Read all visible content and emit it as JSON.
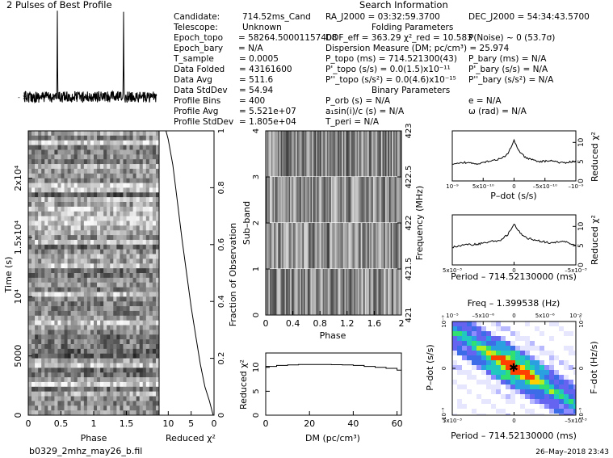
{
  "header": {
    "profile_title": "2 Pulses of Best Profile",
    "search_title": "Search Information",
    "filename": "b0329_2mhz_may26_b.fil",
    "datetime": "26–May–2018 23:43"
  },
  "info_col1": [
    {
      "label": "Candidate:",
      "value": "714.52ms_Cand"
    },
    {
      "label": "Telescope:",
      "value": "Unknown"
    },
    {
      "label": "Epoch_topo",
      "value": "= 58264.50001157408"
    },
    {
      "label": "Epoch_bary",
      "value": "= N/A"
    },
    {
      "label": "T_sample",
      "value": "0.0005"
    },
    {
      "label": "Data Folded",
      "value": "43161600"
    },
    {
      "label": "Data Avg",
      "value": "511.6"
    },
    {
      "label": "Data StdDev",
      "value": "54.94"
    },
    {
      "label": "Profile Bins",
      "value": "400"
    },
    {
      "label": "Profile Avg",
      "value": "5.521e+07"
    },
    {
      "label": "Profile StdDev",
      "value": "1.805e+04"
    }
  ],
  "info_col2": {
    "ra": "RA_J2000 = 03:32:59.3700",
    "folding_title": "Folding Parameters",
    "dof": "DOF_eff = 363.29  χ²_red = 10.583",
    "dm": "Dispersion Measure (DM; pc/cm³) = 25.974",
    "ptopo": "P_topo (ms) = 714.521300(43)",
    "pdtopo": "P'_topo (s/s) = 0.0(1.5)x10⁻¹¹",
    "pddtopo": "P''_topo (s/s²) = 0.0(4.6)x10⁻¹⁵",
    "binary_title": "Binary Parameters",
    "porb": "P_orb (s) = N/A",
    "asini": "a₁sin(i)/c (s) = N/A",
    "tperi": "T_peri = N/A"
  },
  "info_col3": {
    "dec": "DEC_J2000 = 54:34:43.5700",
    "pnoise": "P(Noise) ~ 0   (53.7σ)",
    "pbary": "P_bary (ms) = N/A",
    "pdbary": "P'_bary (s/s) = N/A",
    "pddbary": "P''_bary (s/s²) = N/A",
    "ecc": "e = N/A",
    "omega": "ω (rad) = N/A"
  },
  "chart_data": [
    {
      "id": "pulse-profile",
      "type": "line",
      "title": "2 Pulses of Best Profile",
      "xlim": [
        0,
        2
      ],
      "peaks_at_phase": [
        0.5,
        1.5
      ]
    },
    {
      "id": "time-phase",
      "type": "heatmap",
      "xlabel": "Phase",
      "ylabel": "Time (s)",
      "xlim": [
        0,
        2
      ],
      "ylim": [
        0,
        24000
      ],
      "x_ticks": [
        "0",
        "0.5",
        "1",
        "1.5"
      ],
      "y_ticks": [
        "0",
        "5000",
        "10⁴",
        "1.5x10⁴",
        "2x10⁴"
      ]
    },
    {
      "id": "reduced-chi2-vs-time",
      "type": "line",
      "xlabel": "Reduced χ²",
      "ylabel": "Fraction of Observation",
      "x_ticks": [
        "10",
        "5",
        "0"
      ],
      "y_ticks": [
        "0",
        "0.2",
        "0.4",
        "0.6",
        "0.8",
        "1"
      ],
      "x": [
        0.2,
        1.0,
        2.0,
        3.0,
        4.0,
        5.0,
        6.0,
        7.0,
        8.0,
        9.0,
        10.0,
        10.5
      ],
      "y": [
        0.0,
        0.05,
        0.1,
        0.18,
        0.28,
        0.38,
        0.5,
        0.62,
        0.75,
        0.88,
        0.97,
        1.0
      ]
    },
    {
      "id": "subband-phase",
      "type": "heatmap",
      "xlabel": "Phase",
      "ylabel": "Sub–band",
      "y2label": "Frequency (MHz)",
      "x_ticks": [
        "0",
        "0.4",
        "0.8",
        "1.2",
        "1.6",
        "2"
      ],
      "y_ticks": [
        "0",
        "1",
        "2",
        "3",
        "4"
      ],
      "y2_ticks": [
        "421",
        "421.5",
        "422",
        "422.5",
        "423"
      ]
    },
    {
      "id": "chi2-vs-dm",
      "type": "line",
      "xlabel": "DM (pc/cm³)",
      "ylabel": "Reduced χ²",
      "x_ticks": [
        "0",
        "20",
        "40",
        "60"
      ],
      "y_ticks": [
        "0",
        "5",
        "10"
      ],
      "xlim": [
        0,
        62
      ],
      "ylim": [
        0,
        13
      ],
      "x": [
        0,
        5,
        10,
        15,
        20,
        25,
        30,
        35,
        40,
        45,
        50,
        55,
        60,
        62
      ],
      "y": [
        10.2,
        10.4,
        10.5,
        10.6,
        10.6,
        10.6,
        10.55,
        10.5,
        10.4,
        10.2,
        10.0,
        9.8,
        9.4,
        9.2
      ]
    },
    {
      "id": "chi2-vs-pdot",
      "type": "line",
      "xlabel": "P–dot (s/s)",
      "ylabel": "Reduced χ²",
      "x_ticks": [
        "10⁻⁹",
        "5x10⁻¹⁰",
        "0",
        "–5x10⁻¹⁰",
        "–10⁻⁹"
      ],
      "y_ticks": [
        "0",
        "5",
        "10"
      ],
      "x": [
        -1.0,
        -0.8,
        -0.6,
        -0.4,
        -0.2,
        -0.1,
        0.0,
        0.1,
        0.2,
        0.4,
        0.6,
        0.8,
        1.0
      ],
      "y": [
        4.2,
        4.8,
        4.5,
        5.2,
        5.8,
        7.0,
        10.5,
        7.2,
        5.9,
        5.0,
        5.3,
        4.6,
        5.2
      ]
    },
    {
      "id": "chi2-vs-period",
      "type": "line",
      "xlabel": "Period – 714.52130000 (ms)",
      "ylabel": "Reduced χ²",
      "x_ticks": [
        "5x10⁻³",
        "0",
        "–5x10⁻³"
      ],
      "y_ticks": [
        "0",
        "5",
        "10"
      ],
      "x": [
        -1.0,
        -0.8,
        -0.6,
        -0.4,
        -0.2,
        -0.1,
        0.0,
        0.1,
        0.2,
        0.4,
        0.6,
        0.8,
        1.0
      ],
      "y": [
        4.6,
        5.2,
        5.4,
        6.0,
        6.5,
        8.0,
        10.5,
        8.2,
        7.0,
        6.3,
        5.6,
        6.2,
        5.0
      ]
    },
    {
      "id": "pdot-period-map",
      "type": "heatmap",
      "title": "Freq – 1.399538 (Hz)",
      "xlabel": "Period – 714.52130000 (ms)",
      "ylabel": "P–dot (s/s)",
      "y2label": "F–dot (Hz/s)",
      "x_ticks": [
        "5x10⁻³",
        "0",
        "–5x10⁻³"
      ],
      "x2_ticks": [
        "10⁻⁵",
        "–5x10⁻⁶",
        "0",
        "5x10⁻⁶",
        "10⁻⁵"
      ],
      "y_ticks": [
        "10⁻⁹",
        "0",
        "–10⁻⁹"
      ],
      "y2_ticks": [
        "10⁻⁹",
        "0",
        "–10⁻⁹"
      ]
    }
  ]
}
